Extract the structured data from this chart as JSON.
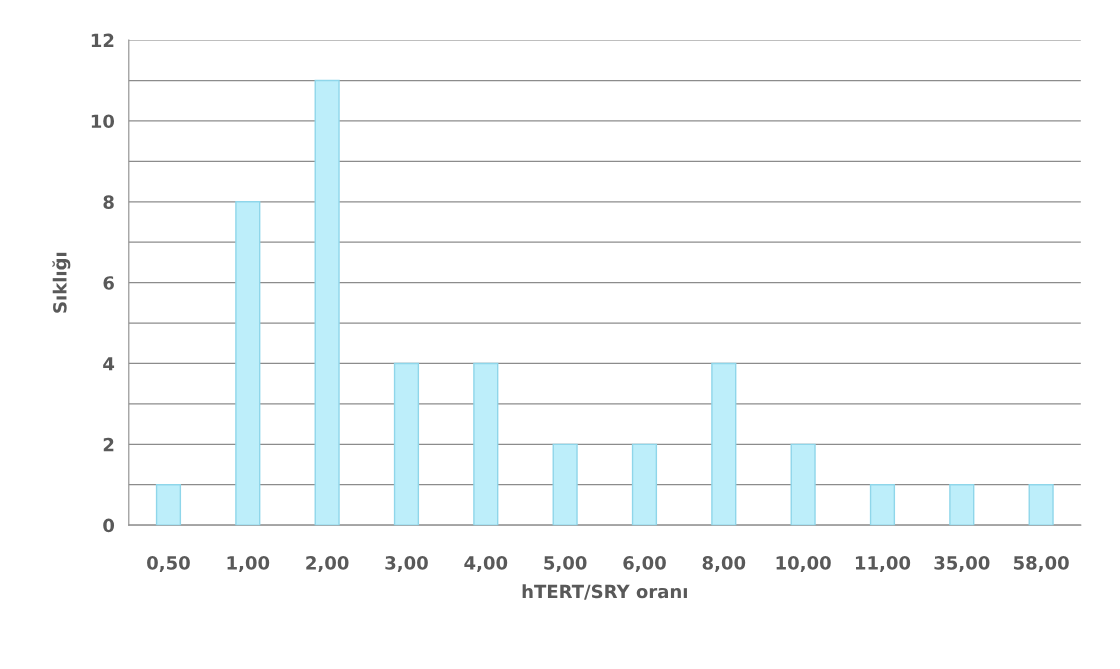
{
  "chart_data": {
    "type": "bar",
    "xlabel": "hTERT/SRY oranı",
    "ylabel": "Sıklığı",
    "categories": [
      "0,50",
      "1,00",
      "2,00",
      "3,00",
      "4,00",
      "5,00",
      "6,00",
      "8,00",
      "10,00",
      "11,00",
      "35,00",
      "58,00"
    ],
    "values": [
      1,
      8,
      11,
      4,
      4,
      2,
      2,
      4,
      2,
      1,
      1,
      1
    ],
    "color": "#bdeefa",
    "ylim": [
      0,
      12
    ],
    "yticks": [
      0,
      2,
      4,
      6,
      8,
      10,
      12
    ],
    "grid": "y",
    "legend": false
  }
}
